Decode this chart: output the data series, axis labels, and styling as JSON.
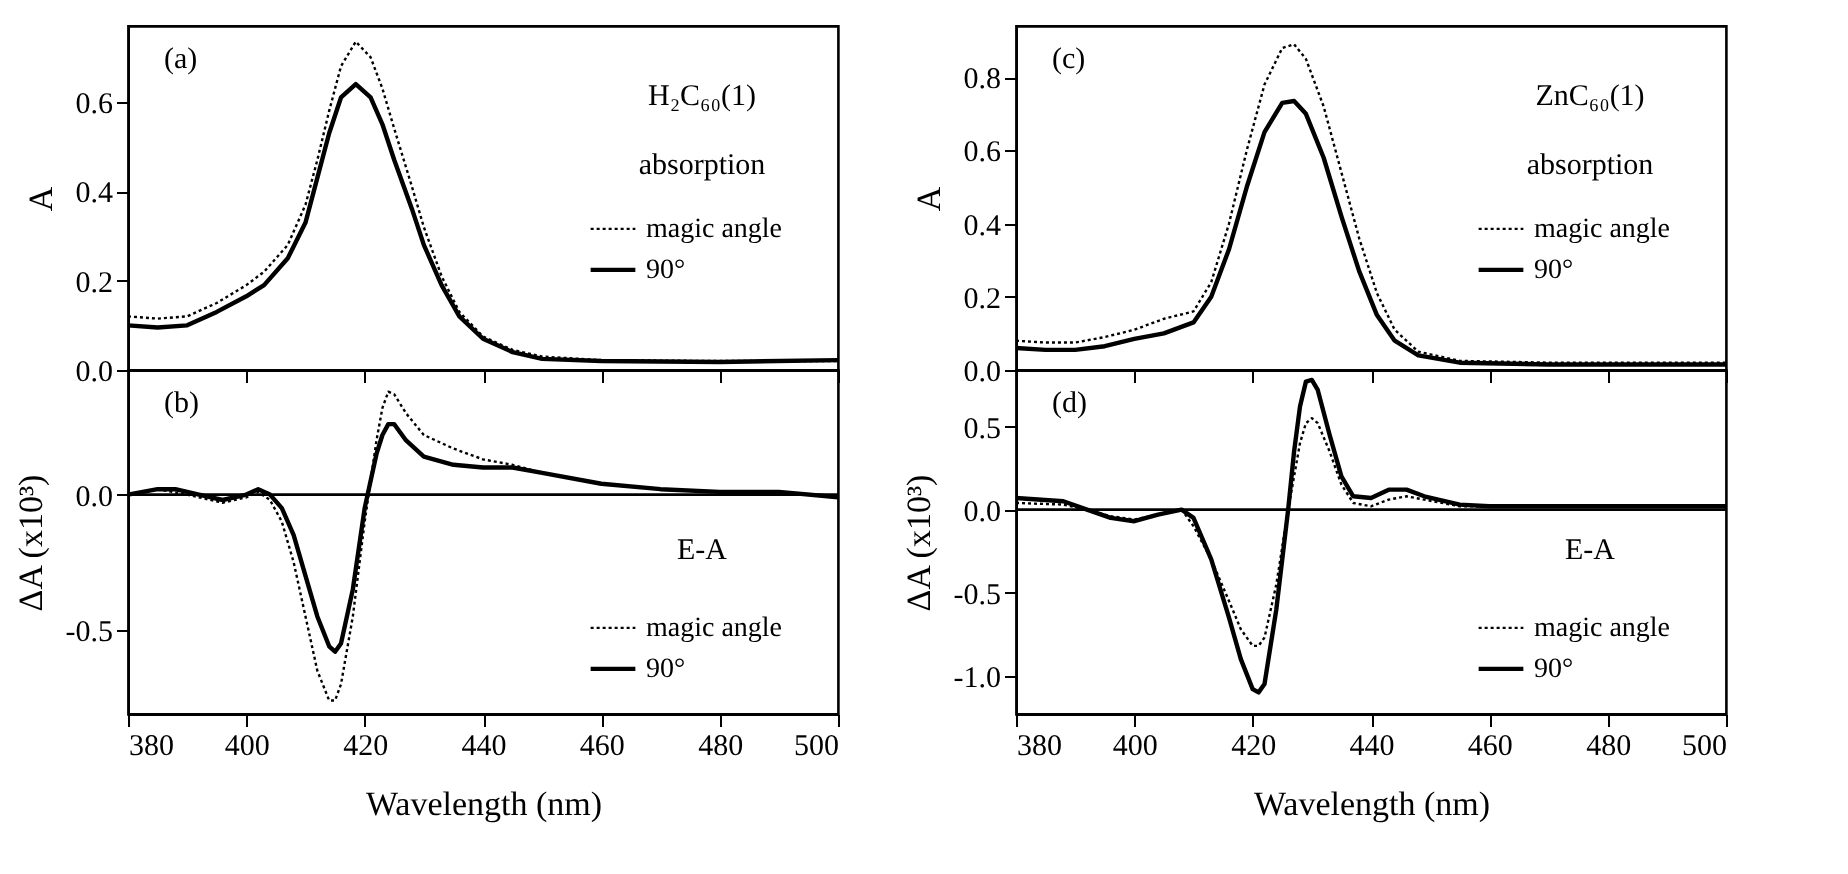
{
  "chart_data": [
    {
      "type": "line",
      "ylabel": "A",
      "annotations": [
        "(a)",
        "H₂C₆₀(1)",
        "absorption"
      ],
      "xlim": [
        380,
        500
      ],
      "xticks": [
        380,
        400,
        420,
        440,
        460,
        480,
        500
      ],
      "ylim": [
        0,
        0.77
      ],
      "yticks": [
        {
          "value": 0,
          "label": "0.0"
        },
        {
          "value": 0.2,
          "label": "0.2"
        },
        {
          "value": 0.4,
          "label": "0.4"
        },
        {
          "value": 0.6,
          "label": "0.6"
        }
      ],
      "tick_labels": "y",
      "legend": "right",
      "grid": false,
      "series": [
        {
          "name": "magic angle",
          "color": "#000000",
          "line_style": "dotted",
          "x": [
            380,
            385,
            390,
            395,
            400,
            403,
            407,
            410,
            412,
            414,
            416,
            418.5,
            421,
            423,
            425,
            428,
            430,
            433,
            436,
            440,
            445,
            450,
            460,
            480,
            500
          ],
          "values": [
            0.12,
            0.115,
            0.12,
            0.15,
            0.19,
            0.22,
            0.28,
            0.37,
            0.47,
            0.58,
            0.68,
            0.735,
            0.7,
            0.63,
            0.54,
            0.41,
            0.32,
            0.21,
            0.13,
            0.075,
            0.045,
            0.03,
            0.022,
            0.02,
            0.02
          ]
        },
        {
          "name": "90°",
          "color": "#000000",
          "line_style": "solid",
          "x": [
            380,
            385,
            390,
            395,
            400,
            403,
            407,
            410,
            412,
            414,
            416,
            418.5,
            421,
            423,
            425,
            428,
            430,
            433,
            436,
            440,
            445,
            450,
            460,
            480,
            500
          ],
          "values": [
            0.1,
            0.095,
            0.1,
            0.13,
            0.165,
            0.19,
            0.25,
            0.33,
            0.43,
            0.53,
            0.61,
            0.64,
            0.61,
            0.55,
            0.47,
            0.36,
            0.28,
            0.19,
            0.12,
            0.07,
            0.04,
            0.025,
            0.02,
            0.018,
            0.022
          ]
        }
      ]
    },
    {
      "type": "line",
      "xlabel": "Wavelength (nm)",
      "ylabel": "ΔA (x10³)",
      "annotations": [
        "(b)",
        "E-A"
      ],
      "xlim": [
        380,
        500
      ],
      "xticks": [
        380,
        400,
        420,
        440,
        460,
        480,
        500
      ],
      "ylim": [
        -0.81,
        0.46
      ],
      "yticks": [
        {
          "value": -0.5,
          "label": "-0.5"
        },
        {
          "value": 0,
          "label": "0.0"
        }
      ],
      "legend": "bottom right",
      "grid": false,
      "ref_lines": [
        {
          "axis": "y",
          "value": 0,
          "label": null,
          "color": "#000000",
          "line_style": "solid"
        }
      ],
      "series": [
        {
          "name": "magic angle",
          "color": "#000000",
          "line_style": "dotted",
          "x": [
            380,
            385,
            390,
            396,
            400,
            402,
            404,
            406,
            408,
            410,
            412,
            414,
            415,
            416,
            418,
            420,
            421,
            422,
            423,
            424,
            425,
            427,
            430,
            435,
            440,
            445,
            450,
            460,
            470,
            480,
            490,
            500
          ],
          "values": [
            0.0,
            0.02,
            0.0,
            -0.03,
            -0.01,
            0.01,
            -0.02,
            -0.1,
            -0.25,
            -0.45,
            -0.65,
            -0.76,
            -0.76,
            -0.7,
            -0.45,
            -0.1,
            0.05,
            0.2,
            0.32,
            0.38,
            0.37,
            0.3,
            0.22,
            0.17,
            0.13,
            0.11,
            0.08,
            0.04,
            0.02,
            0.01,
            0.01,
            -0.01
          ]
        },
        {
          "name": "90°",
          "color": "#000000",
          "line_style": "solid",
          "x": [
            380,
            385,
            388,
            392,
            396,
            400,
            402,
            404,
            406,
            408,
            410,
            412,
            414,
            415,
            416,
            418,
            420,
            421,
            422,
            423,
            424,
            425,
            427,
            430,
            435,
            440,
            445,
            450,
            460,
            470,
            480,
            490,
            500
          ],
          "values": [
            0.0,
            0.02,
            0.02,
            0.0,
            -0.02,
            0.0,
            0.02,
            0.0,
            -0.05,
            -0.15,
            -0.3,
            -0.45,
            -0.56,
            -0.58,
            -0.55,
            -0.35,
            -0.05,
            0.05,
            0.15,
            0.22,
            0.26,
            0.26,
            0.2,
            0.14,
            0.11,
            0.1,
            0.1,
            0.08,
            0.04,
            0.02,
            0.01,
            0.01,
            -0.01
          ]
        }
      ]
    },
    {
      "type": "line",
      "ylabel": "A",
      "annotations": [
        "(c)",
        "ZnC₆₀(1)",
        "absorption"
      ],
      "xlim": [
        380,
        500
      ],
      "xticks": [
        380,
        400,
        420,
        440,
        460,
        480,
        500
      ],
      "ylim": [
        0,
        0.94
      ],
      "yticks": [
        {
          "value": 0,
          "label": "0.0"
        },
        {
          "value": 0.2,
          "label": "0.2"
        },
        {
          "value": 0.4,
          "label": "0.4"
        },
        {
          "value": 0.6,
          "label": "0.6"
        },
        {
          "value": 0.8,
          "label": "0.8"
        }
      ],
      "tick_labels": "y",
      "legend": "right",
      "grid": false,
      "series": [
        {
          "name": "magic angle",
          "color": "#000000",
          "line_style": "dotted",
          "x": [
            380,
            385,
            390,
            395,
            400,
            405,
            410,
            413,
            416,
            419,
            422,
            425,
            427,
            429,
            432,
            435,
            438,
            441,
            444,
            448,
            455,
            470,
            500
          ],
          "values": [
            0.08,
            0.075,
            0.075,
            0.09,
            0.11,
            0.14,
            0.16,
            0.24,
            0.4,
            0.6,
            0.78,
            0.88,
            0.89,
            0.85,
            0.72,
            0.54,
            0.36,
            0.21,
            0.11,
            0.05,
            0.025,
            0.02,
            0.02
          ]
        },
        {
          "name": "90°",
          "color": "#000000",
          "line_style": "solid",
          "x": [
            380,
            385,
            390,
            395,
            400,
            405,
            410,
            413,
            416,
            419,
            422,
            425,
            427,
            429,
            432,
            435,
            438,
            441,
            444,
            448,
            455,
            470,
            500
          ],
          "values": [
            0.06,
            0.055,
            0.055,
            0.065,
            0.085,
            0.1,
            0.13,
            0.2,
            0.33,
            0.5,
            0.65,
            0.73,
            0.735,
            0.7,
            0.58,
            0.42,
            0.27,
            0.15,
            0.08,
            0.04,
            0.02,
            0.015,
            0.015
          ]
        }
      ]
    },
    {
      "type": "line",
      "xlabel": "Wavelength (nm)",
      "ylabel": "ΔA (x10³)",
      "annotations": [
        "(d)",
        "E-A"
      ],
      "xlim": [
        380,
        500
      ],
      "xticks": [
        380,
        400,
        420,
        440,
        460,
        480,
        500
      ],
      "ylim": [
        -1.23,
        0.84
      ],
      "yticks": [
        {
          "value": -1,
          "label": "-1.0"
        },
        {
          "value": -0.5,
          "label": "-0.5"
        },
        {
          "value": 0,
          "label": "0.0"
        },
        {
          "value": 0.5,
          "label": "0.5"
        }
      ],
      "legend": "bottom right",
      "grid": false,
      "ref_lines": [
        {
          "axis": "y",
          "value": 0,
          "label": null,
          "color": "#000000",
          "line_style": "solid"
        }
      ],
      "series": [
        {
          "name": "magic angle",
          "color": "#000000",
          "line_style": "dotted",
          "x": [
            380,
            388,
            392,
            396,
            400,
            404,
            408,
            410,
            413,
            416,
            418,
            420,
            421,
            422,
            424,
            426,
            427,
            428,
            429,
            430,
            431,
            433,
            435,
            437,
            440,
            443,
            446,
            449,
            455,
            460,
            500
          ],
          "values": [
            0.04,
            0.03,
            0.0,
            -0.04,
            -0.06,
            -0.03,
            0.0,
            -0.1,
            -0.3,
            -0.55,
            -0.72,
            -0.82,
            -0.82,
            -0.77,
            -0.45,
            0.0,
            0.2,
            0.4,
            0.52,
            0.55,
            0.52,
            0.35,
            0.15,
            0.04,
            0.02,
            0.06,
            0.08,
            0.06,
            0.02,
            0.02,
            0.02
          ]
        },
        {
          "name": "90°",
          "color": "#000000",
          "line_style": "solid",
          "x": [
            380,
            388,
            392,
            396,
            400,
            404,
            408,
            410,
            413,
            416,
            418,
            420,
            421,
            422,
            424,
            426,
            427,
            428,
            429,
            430,
            431,
            433,
            435,
            437,
            440,
            443,
            446,
            449,
            455,
            460,
            480,
            500
          ],
          "values": [
            0.07,
            0.05,
            0.0,
            -0.05,
            -0.07,
            -0.03,
            0.0,
            -0.05,
            -0.3,
            -0.65,
            -0.9,
            -1.08,
            -1.1,
            -1.05,
            -0.6,
            0.0,
            0.35,
            0.62,
            0.77,
            0.78,
            0.72,
            0.45,
            0.2,
            0.08,
            0.07,
            0.12,
            0.12,
            0.08,
            0.03,
            0.02,
            0.02,
            0.02
          ]
        }
      ]
    }
  ]
}
